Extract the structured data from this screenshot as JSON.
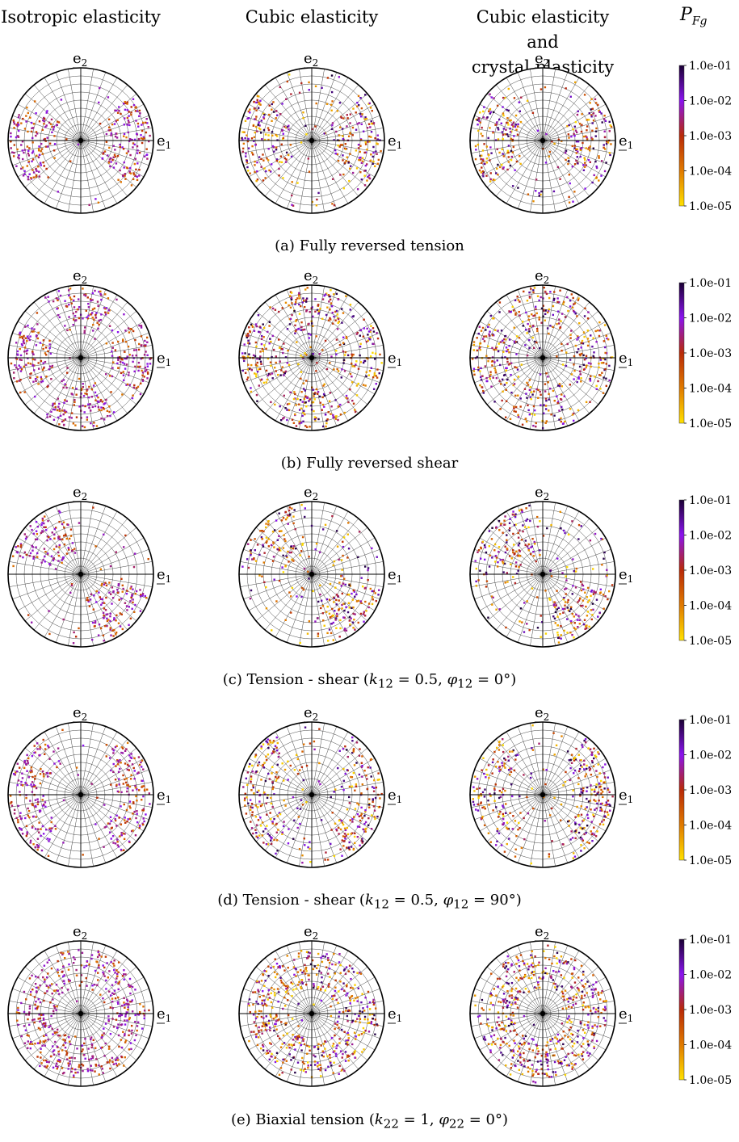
{
  "columns": {
    "col1": "Isotropic elasticity",
    "col2": "Cubic elasticity",
    "col3_line1": "Cubic elasticity and",
    "col3_line2": "crystal plasticity",
    "pfg_symbol": "P",
    "pfg_subscript": "Fg"
  },
  "axis_labels": {
    "e1": "e",
    "e1_sub": "1",
    "e2": "e",
    "e2_sub": "2"
  },
  "colorbar": {
    "ticks": [
      "1.0e-01",
      "1.0e-02",
      "1.0e-03",
      "1.0e-04",
      "1.0e-05"
    ],
    "colors": [
      "#1a0033",
      "#8a14ee",
      "#b82a08",
      "#e07a00",
      "#ffe000"
    ]
  },
  "rows": [
    {
      "caption": "(a) Fully reversed tension"
    },
    {
      "caption": "(b) Fully reversed shear"
    },
    {
      "caption": "(c) Tension - shear (k12 = 0.5, φ12 = 0°)",
      "caption_html": "(c) Tension - shear (<i>k</i><sub>12</sub> = 0.5, <i>φ</i><sub>12</sub> = 0°)"
    },
    {
      "caption": "(d) Tension - shear (k12 = 0.5, φ12 = 90°)",
      "caption_html": "(d) Tension - shear (<i>k</i><sub>12</sub> = 0.5, <i>φ</i><sub>12</sub> = 90°)"
    },
    {
      "caption": "(e) Biaxial tension (k22 = 1, φ22 = 0°)",
      "caption_html": "(e) Biaxial tension (<i>k</i><sub>22</sub> = 1, <i>φ</i><sub>22</sub> = 0°)"
    }
  ]
}
